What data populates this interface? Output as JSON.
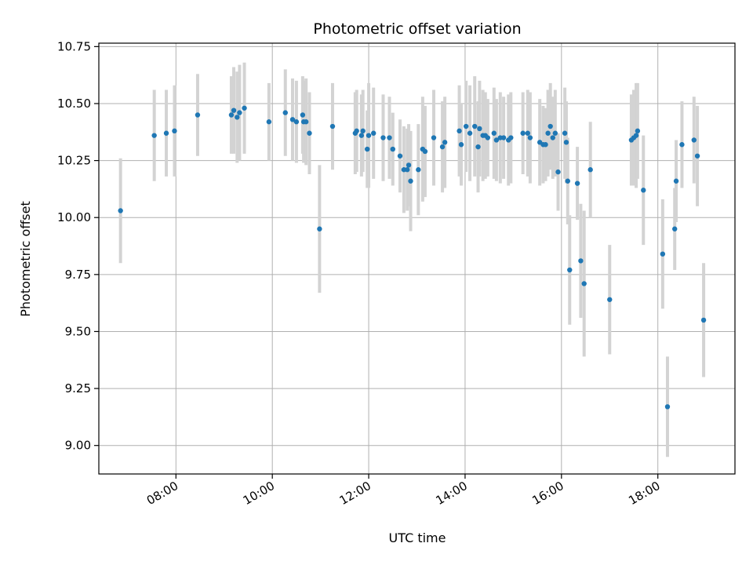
{
  "chart_data": {
    "type": "scatter",
    "title": "Photometric offset variation",
    "xlabel": "UTC time",
    "ylabel": "Photometric offset",
    "x_unit": "hours UTC",
    "xlim": [
      6.4,
      19.6
    ],
    "ylim": [
      8.875,
      10.765
    ],
    "grid": true,
    "legend": "none",
    "x_ticks": [
      {
        "value": 8,
        "label": "08:00"
      },
      {
        "value": 10,
        "label": "10:00"
      },
      {
        "value": 12,
        "label": "12:00"
      },
      {
        "value": 14,
        "label": "14:00"
      },
      {
        "value": 16,
        "label": "16:00"
      },
      {
        "value": 18,
        "label": "18:00"
      }
    ],
    "y_ticks": [
      {
        "value": 9.0,
        "label": "9.00"
      },
      {
        "value": 9.25,
        "label": "9.25"
      },
      {
        "value": 9.5,
        "label": "9.50"
      },
      {
        "value": 9.75,
        "label": "9.75"
      },
      {
        "value": 10.0,
        "label": "10.00"
      },
      {
        "value": 10.25,
        "label": "10.25"
      },
      {
        "value": 10.5,
        "label": "10.50"
      },
      {
        "value": 10.75,
        "label": "10.75"
      }
    ],
    "colors": {
      "point": "#1f77b4",
      "errorbar": "#d3d3d3",
      "grid": "#b0b0b0"
    },
    "series": [
      {
        "x": [
          6.85,
          7.55,
          7.8,
          7.97,
          8.45,
          9.15,
          9.2,
          9.27,
          9.32,
          9.42,
          9.93,
          10.27,
          10.42,
          10.5,
          10.63,
          10.65,
          10.7,
          10.77,
          10.98,
          11.25,
          11.72,
          11.75,
          11.85,
          11.88,
          11.97,
          12.0,
          12.1,
          12.3,
          12.43,
          12.5,
          12.65,
          12.73,
          12.8,
          12.83,
          12.87,
          13.03,
          13.12,
          13.17,
          13.35,
          13.53,
          13.58,
          13.88,
          13.92,
          14.02,
          14.1,
          14.2,
          14.27,
          14.3,
          14.37,
          14.42,
          14.47,
          14.6,
          14.65,
          14.73,
          14.8,
          14.9,
          14.95,
          15.2,
          15.3,
          15.35,
          15.55,
          15.62,
          15.67,
          15.72,
          15.77,
          15.82,
          15.87,
          15.93,
          16.07,
          16.1,
          16.13,
          16.17,
          16.33,
          16.4,
          16.47,
          16.6,
          17.0,
          17.45,
          17.5,
          17.55,
          17.58,
          17.7,
          18.1,
          18.2,
          18.35,
          18.38,
          18.5,
          18.75,
          18.82,
          18.95
        ],
        "y": [
          10.03,
          10.36,
          10.37,
          10.38,
          10.45,
          10.45,
          10.47,
          10.44,
          10.46,
          10.48,
          10.42,
          10.46,
          10.43,
          10.42,
          10.45,
          10.42,
          10.42,
          10.37,
          9.95,
          10.4,
          10.37,
          10.38,
          10.36,
          10.38,
          10.3,
          10.36,
          10.37,
          10.35,
          10.35,
          10.3,
          10.27,
          10.21,
          10.21,
          10.23,
          10.16,
          10.21,
          10.3,
          10.29,
          10.35,
          10.31,
          10.33,
          10.38,
          10.32,
          10.4,
          10.37,
          10.4,
          10.31,
          10.39,
          10.36,
          10.36,
          10.35,
          10.37,
          10.34,
          10.35,
          10.35,
          10.34,
          10.35,
          10.37,
          10.37,
          10.35,
          10.33,
          10.32,
          10.32,
          10.37,
          10.4,
          10.35,
          10.37,
          10.2,
          10.37,
          10.33,
          10.16,
          9.77,
          10.15,
          9.81,
          9.71,
          10.21,
          9.64,
          10.34,
          10.35,
          10.36,
          10.38,
          10.12,
          9.84,
          9.17,
          9.95,
          10.16,
          10.32,
          10.34,
          10.27,
          9.55
        ],
        "err": [
          0.23,
          0.2,
          0.19,
          0.2,
          0.18,
          0.17,
          0.19,
          0.2,
          0.21,
          0.2,
          0.17,
          0.19,
          0.18,
          0.18,
          0.17,
          0.18,
          0.19,
          0.18,
          0.28,
          0.19,
          0.18,
          0.18,
          0.18,
          0.18,
          0.17,
          0.23,
          0.2,
          0.19,
          0.18,
          0.16,
          0.16,
          0.19,
          0.18,
          0.18,
          0.22,
          0.2,
          0.23,
          0.2,
          0.21,
          0.2,
          0.2,
          0.2,
          0.18,
          0.2,
          0.21,
          0.22,
          0.2,
          0.21,
          0.2,
          0.19,
          0.17,
          0.2,
          0.18,
          0.2,
          0.18,
          0.2,
          0.2,
          0.18,
          0.19,
          0.2,
          0.19,
          0.17,
          0.16,
          0.19,
          0.19,
          0.18,
          0.19,
          0.17,
          0.2,
          0.18,
          0.19,
          0.24,
          0.16,
          0.25,
          0.32,
          0.21,
          0.24,
          0.2,
          0.21,
          0.23,
          0.21,
          0.24,
          0.24,
          0.22,
          0.18,
          0.18,
          0.19,
          0.19,
          0.22,
          0.25
        ]
      }
    ]
  }
}
